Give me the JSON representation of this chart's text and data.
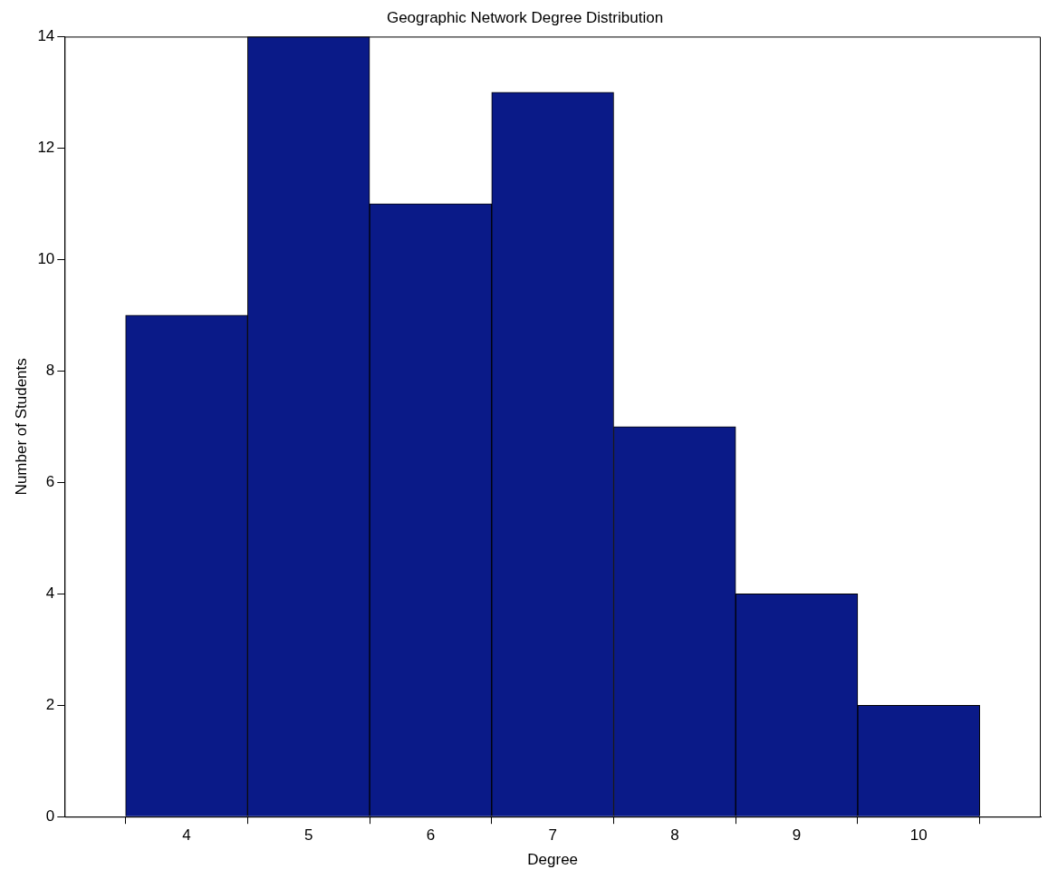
{
  "chart_data": {
    "type": "histogram",
    "title": "Geographic Network Degree Distribution",
    "xlabel": "Degree",
    "ylabel": "Number of Students",
    "bins": [
      3.5,
      4.5,
      5.5,
      6.5,
      7.5,
      8.5,
      9.5,
      10.5
    ],
    "values": [
      9,
      14,
      11,
      13,
      7,
      4,
      2
    ],
    "color": "#0a1a88",
    "xlim": [
      3,
      11
    ],
    "xticks": [
      4,
      5,
      6,
      7,
      8,
      9,
      10
    ],
    "ylim": [
      0,
      14
    ],
    "yticks": [
      0,
      2,
      4,
      6,
      8,
      10,
      12,
      14
    ],
    "grid": false
  }
}
